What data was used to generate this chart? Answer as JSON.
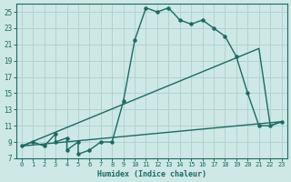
{
  "xlabel": "Humidex (Indice chaleur)",
  "bg_color": "#cde8e5",
  "line_color": "#1a6b63",
  "grid_color": "#aecfcc",
  "xlim": [
    -0.5,
    23.5
  ],
  "ylim": [
    7,
    26
  ],
  "xticks": [
    0,
    1,
    2,
    3,
    4,
    5,
    6,
    7,
    8,
    9,
    10,
    11,
    12,
    13,
    14,
    15,
    16,
    17,
    18,
    19,
    20,
    21,
    22,
    23
  ],
  "yticks": [
    7,
    9,
    11,
    13,
    15,
    17,
    19,
    21,
    23,
    25
  ],
  "curve1_x": [
    0,
    1,
    2,
    3,
    3,
    4,
    4,
    5,
    5,
    6,
    7,
    8,
    9,
    10,
    11,
    12,
    13,
    14,
    15,
    16,
    17,
    18,
    19,
    20,
    21,
    22,
    23
  ],
  "curve1_y": [
    8.5,
    9,
    8.5,
    10,
    9,
    9.5,
    8,
    9,
    7.5,
    8,
    9,
    9,
    14,
    21.5,
    25.5,
    25,
    25.5,
    24,
    23.5,
    24,
    23,
    22,
    19.5,
    15,
    11,
    11,
    11.5
  ],
  "curve2_x": [
    0,
    23
  ],
  "curve2_y": [
    8.5,
    11.5
  ],
  "curve3_x": [
    0,
    21,
    22,
    23
  ],
  "curve3_y": [
    8.5,
    20.5,
    11,
    11.5
  ]
}
